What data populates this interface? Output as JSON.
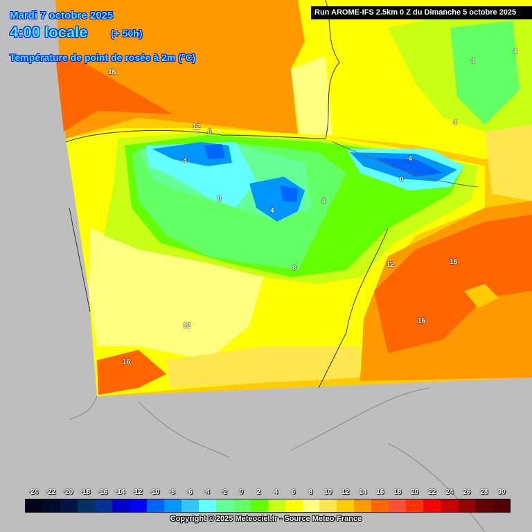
{
  "header": {
    "date": "Mardi 7 octobre 2025",
    "time": "4:00 locale",
    "lead": "(+ 50h)",
    "parameter": "Température de point de rosée à 2m (°C)",
    "run": "Run AROME-IFS 2.5km 0 Z du Dimanche 5 octobre 2025"
  },
  "contour_labels": [
    "16",
    "12",
    "6",
    "-4",
    "0",
    "4",
    "4",
    "-4",
    "0",
    "4",
    "4",
    "4",
    "8",
    "12",
    "16",
    "16",
    "12",
    "16"
  ],
  "legend": {
    "ticks": [
      "-24",
      "-22",
      "-20",
      "-18",
      "-16",
      "-14",
      "-12",
      "-10",
      "-8",
      "-6",
      "-4",
      "-2",
      "0",
      "2",
      "4",
      "6",
      "8",
      "10",
      "12",
      "14",
      "16",
      "18",
      "20",
      "22",
      "24",
      "26",
      "28",
      "30"
    ],
    "colors": [
      "#03031a",
      "#000a2a",
      "#001446",
      "#003264",
      "#003296",
      "#0000c8",
      "#0000ff",
      "#0064ff",
      "#0096ff",
      "#32c8ff",
      "#64ffff",
      "#64ff96",
      "#64ff64",
      "#64ff00",
      "#c8ff14",
      "#ffff00",
      "#ffff80",
      "#ffe650",
      "#ffcc00",
      "#ff9900",
      "#ff6600",
      "#ff5037",
      "#ff3200",
      "#ff0000",
      "#c80000",
      "#960000",
      "#640000",
      "#500000"
    ]
  },
  "footer": {
    "copyright": "Copyright © 2025 Meteociel.fr - Source Meteo-France"
  }
}
